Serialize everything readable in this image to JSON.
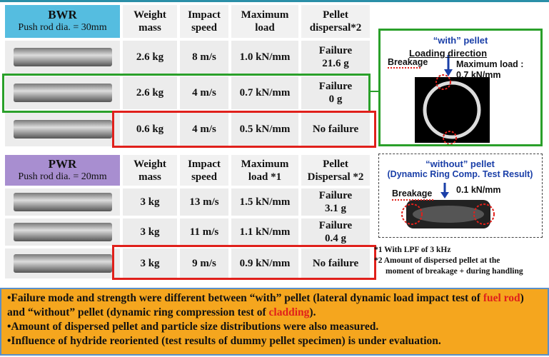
{
  "bwr": {
    "title": "BWR",
    "subtitle": "Push rod dia. = 30mm",
    "headers": [
      [
        "Weight",
        "mass"
      ],
      [
        "Impact",
        "speed"
      ],
      [
        "Maximum",
        "load"
      ],
      [
        "Pellet",
        "dispersal*2"
      ]
    ],
    "rows": [
      [
        "2.6 kg",
        "8 m/s",
        "1.0 kN/mm",
        [
          "Failure",
          "21.6 g"
        ]
      ],
      [
        "2.6 kg",
        "4 m/s",
        "0.7 kN/mm",
        [
          "Failure",
          "0 g"
        ]
      ],
      [
        "0.6 kg",
        "4 m/s",
        "0.5 kN/mm",
        [
          "No failure"
        ]
      ]
    ]
  },
  "pwr": {
    "title": "PWR",
    "subtitle": "Push rod dia. = 20mm",
    "headers": [
      [
        "Weight",
        "mass"
      ],
      [
        "Impact",
        "speed"
      ],
      [
        "Maximum",
        "load *1"
      ],
      [
        "Pellet",
        "Dispersal *2"
      ]
    ],
    "rows": [
      [
        "3 kg",
        "13 m/s",
        "1.5 kN/mm",
        [
          "Failure",
          "3.1 g"
        ]
      ],
      [
        "3 kg",
        "11 m/s",
        "1.1 kN/mm",
        [
          "Failure",
          "0.4 g"
        ]
      ],
      [
        "3 kg",
        "9 m/s",
        "0.9 kN/mm",
        [
          "No failure"
        ]
      ]
    ]
  },
  "with_panel": {
    "title": "“with” pellet",
    "direction": "Loading direction",
    "load_label": "Maximum load :",
    "load_value": "0.7 kN/mm",
    "breakage": "Breakage"
  },
  "without_panel": {
    "title": "“without” pellet",
    "subtitle": "(Dynamic Ring Comp. Test Result)",
    "breakage": "Breakage",
    "load_value": "0.1 kN/mm"
  },
  "footnotes": [
    "*1 With LPF of 3 kHz",
    "*2 Amount of dispersed pellet at the",
    "moment of breakage + during handling"
  ],
  "bullets": [
    [
      "•Failure mode and strength were different between “with” pellet (lateral dynamic load impact test of ",
      "fuel rod",
      ") and “without” pellet (dynamic ring compression test of ",
      "cladding",
      ")."
    ],
    [
      "•Amount of dispersed pellet and particle size distributions were also measured."
    ],
    [
      "•Influence of hydride reoriented (test results of dummy pellet specimen) is under evaluation."
    ]
  ]
}
